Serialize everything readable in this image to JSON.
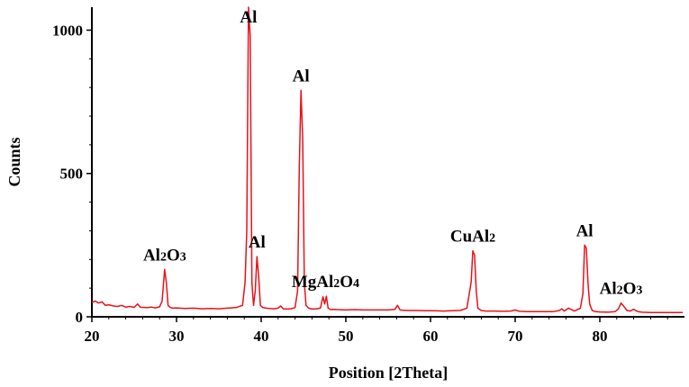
{
  "chart_data": {
    "type": "line",
    "title": "",
    "xlabel": "Position [2Theta]",
    "ylabel": "Counts",
    "xlim": [
      20,
      90
    ],
    "ylim": [
      0,
      1080
    ],
    "x_ticks": [
      20,
      30,
      40,
      50,
      60,
      70,
      80
    ],
    "y_ticks": [
      0,
      500,
      1000
    ],
    "grid": false,
    "line_color": "#e8121b",
    "series": [
      {
        "x": [
          20.0,
          20.4,
          20.8,
          21.2,
          21.6,
          22.0,
          22.5,
          23.0,
          23.5,
          24.0,
          24.5,
          25.0,
          25.4,
          25.7,
          26.0,
          26.5,
          27.0,
          27.5,
          28.0,
          28.3,
          28.6,
          28.8,
          29.0,
          29.3,
          29.6,
          30.0,
          31.0,
          32.0,
          33.0,
          34.0,
          35.0,
          36.0,
          37.0,
          37.8,
          38.1,
          38.3,
          38.5,
          38.7,
          38.9,
          39.1,
          39.3,
          39.5,
          39.7,
          39.9,
          40.2,
          40.6,
          41.0,
          41.5,
          42.0,
          42.3,
          42.6,
          43.0,
          43.5,
          44.0,
          44.3,
          44.5,
          44.7,
          44.9,
          45.1,
          45.3,
          45.6,
          46.0,
          46.5,
          47.0,
          47.3,
          47.5,
          47.7,
          47.9,
          48.2,
          48.6,
          49.0,
          50.0,
          51.0,
          52.0,
          53.0,
          54.0,
          55.0,
          55.8,
          56.1,
          56.4,
          56.8,
          57.5,
          58.5,
          59.5,
          60.5,
          61.5,
          62.5,
          63.5,
          64.3,
          64.8,
          65.0,
          65.2,
          65.4,
          65.6,
          66.0,
          66.5,
          67.5,
          68.5,
          69.5,
          70.0,
          70.5,
          71.5,
          72.5,
          73.5,
          74.5,
          75.2,
          75.5,
          75.8,
          76.3,
          77.0,
          77.7,
          78.0,
          78.2,
          78.4,
          78.6,
          78.8,
          79.1,
          79.5,
          80.0,
          81.0,
          81.8,
          82.2,
          82.5,
          82.8,
          83.2,
          83.6,
          84.0,
          84.5,
          85.0,
          86.0,
          87.0,
          88.0,
          89.0,
          89.8
        ],
        "y": [
          50,
          55,
          48,
          52,
          40,
          42,
          38,
          36,
          40,
          34,
          36,
          33,
          45,
          34,
          33,
          32,
          34,
          31,
          35,
          55,
          165,
          120,
          40,
          32,
          30,
          31,
          29,
          30,
          28,
          29,
          28,
          30,
          32,
          40,
          120,
          300,
          1080,
          980,
          120,
          40,
          90,
          210,
          140,
          40,
          32,
          30,
          29,
          28,
          30,
          38,
          28,
          27,
          28,
          32,
          90,
          520,
          790,
          620,
          120,
          40,
          30,
          27,
          28,
          30,
          70,
          45,
          72,
          30,
          25,
          26,
          25,
          24,
          25,
          24,
          24,
          24,
          24,
          26,
          40,
          24,
          23,
          22,
          22,
          21,
          21,
          20,
          21,
          22,
          30,
          120,
          230,
          215,
          90,
          30,
          22,
          20,
          20,
          19,
          20,
          24,
          19,
          18,
          18,
          18,
          18,
          22,
          28,
          20,
          30,
          20,
          30,
          80,
          250,
          240,
          120,
          45,
          22,
          18,
          17,
          16,
          18,
          28,
          48,
          38,
          22,
          20,
          26,
          18,
          16,
          15,
          15,
          15,
          15,
          15
        ]
      }
    ],
    "annotations": [
      {
        "main": "Al",
        "sub1": "2",
        "main2": "O",
        "sub2": "3",
        "x": 28.6,
        "y": 165
      },
      {
        "main": "Al",
        "sub1": "",
        "main2": "",
        "sub2": "",
        "x": 38.5,
        "y": 1080
      },
      {
        "main": "Al",
        "sub1": "",
        "main2": "",
        "sub2": "",
        "x": 39.5,
        "y": 210
      },
      {
        "main": "Al",
        "sub1": "",
        "main2": "",
        "sub2": "",
        "x": 44.7,
        "y": 790
      },
      {
        "main": "MgAl",
        "sub1": "2",
        "main2": "O",
        "sub2": "4",
        "x": 47.6,
        "y": 72
      },
      {
        "main": "CuAl",
        "sub1": "2",
        "main2": "",
        "sub2": "",
        "x": 65.0,
        "y": 230
      },
      {
        "main": "Al",
        "sub1": "",
        "main2": "",
        "sub2": "",
        "x": 78.2,
        "y": 250
      },
      {
        "main": "Al",
        "sub1": "2",
        "main2": "O",
        "sub2": "3",
        "x": 82.5,
        "y": 48
      }
    ]
  }
}
